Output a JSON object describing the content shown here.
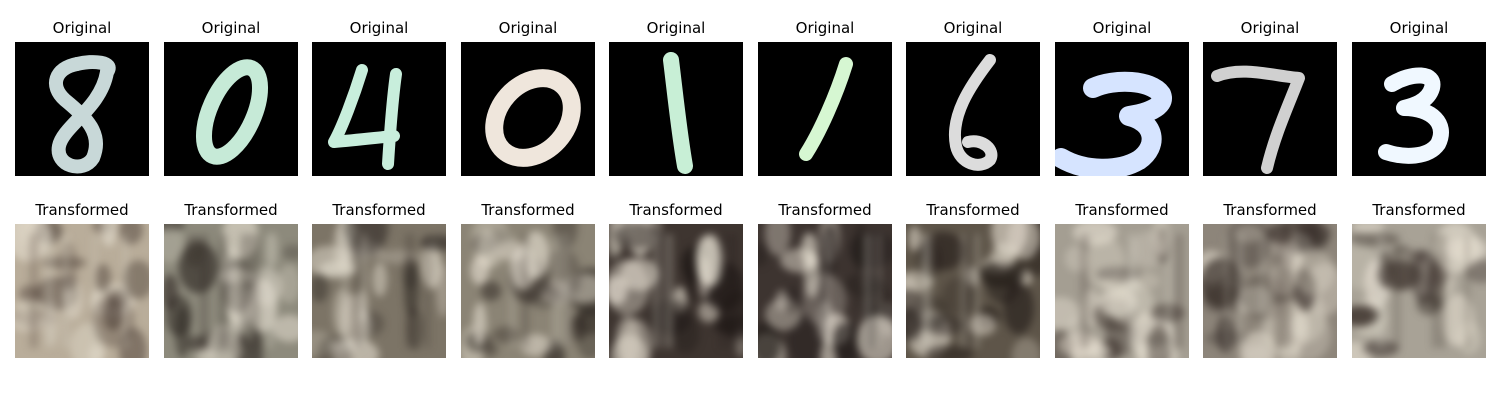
{
  "labels": {
    "original": "Original",
    "transformed": "Transformed"
  },
  "panels": [
    {
      "digit": "8",
      "ink": "#c8d8d8",
      "tone": {
        "bg": "#b9ad9a",
        "dark": "#4a3d35"
      }
    },
    {
      "digit": "0",
      "ink": "#c6ead7",
      "tone": {
        "bg": "#8d8a7c",
        "dark": "#2c2520"
      }
    },
    {
      "digit": "4",
      "ink": "#c8eedc",
      "tone": {
        "bg": "#7c7466",
        "dark": "#2a2420"
      }
    },
    {
      "digit": "0",
      "ink": "#efe6dc",
      "tone": {
        "bg": "#8b8475",
        "dark": "#2b241f"
      }
    },
    {
      "digit": "1",
      "ink": "#c8efd6",
      "tone": {
        "bg": "#3e3530",
        "dark": "#1e1816"
      }
    },
    {
      "digit": "1",
      "ink": "#d6f7d2",
      "tone": {
        "bg": "#3d3430",
        "dark": "#1d1816"
      }
    },
    {
      "digit": "6",
      "ink": "#dcdcdc",
      "tone": {
        "bg": "#5e5549",
        "dark": "#231c18"
      }
    },
    {
      "digit": "3",
      "ink": "#d6e4ff",
      "tone": {
        "bg": "#a49e92",
        "dark": "#3b312c"
      }
    },
    {
      "digit": "7",
      "ink": "#d0d0d0",
      "tone": {
        "bg": "#8d857a",
        "dark": "#2e2420"
      }
    },
    {
      "digit": "3",
      "ink": "#f0f8ff",
      "tone": {
        "bg": "#a8a296",
        "dark": "#3c322d"
      }
    }
  ]
}
